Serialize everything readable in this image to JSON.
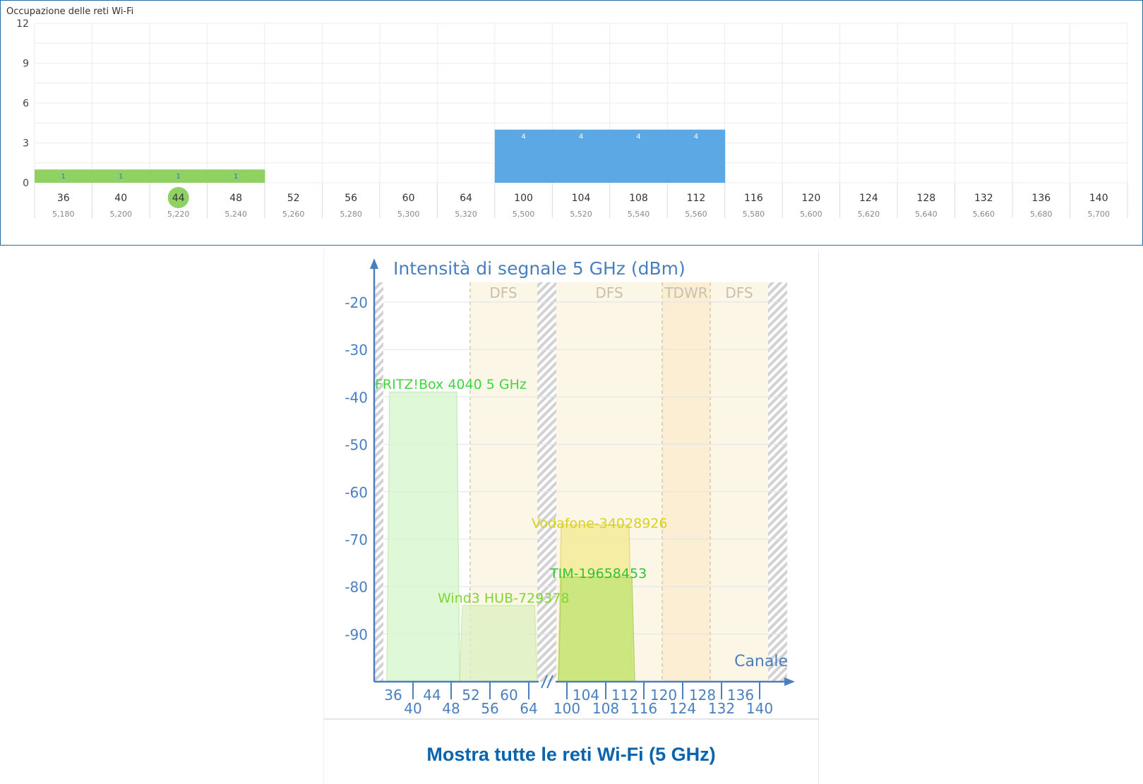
{
  "top_chart": {
    "title": "Occupazione delle reti Wi-Fi",
    "colors": {
      "low": "#8fd163",
      "high": "#5ba8e4",
      "selected": "#8fd163",
      "label": "#2a76c9"
    },
    "selected_channel": "44",
    "chart_data": {
      "type": "bar",
      "title": "Occupazione delle reti Wi-Fi",
      "categories": [
        "36",
        "40",
        "44",
        "48",
        "52",
        "56",
        "60",
        "64",
        "100",
        "104",
        "108",
        "112",
        "116",
        "120",
        "124",
        "128",
        "132",
        "136",
        "140"
      ],
      "frequencies": [
        "5,180",
        "5,200",
        "5,220",
        "5,240",
        "5,260",
        "5,280",
        "5,300",
        "5,320",
        "5,500",
        "5,520",
        "5,540",
        "5,560",
        "5,580",
        "5,600",
        "5,620",
        "5,640",
        "5,660",
        "5,680",
        "5,700"
      ],
      "values": [
        1,
        1,
        1,
        1,
        0,
        0,
        0,
        0,
        4,
        4,
        4,
        4,
        0,
        0,
        0,
        0,
        0,
        0,
        0
      ],
      "yticks": [
        "12",
        "9",
        "6",
        "3",
        "0"
      ],
      "ylim": [
        0,
        12
      ],
      "grid": true
    }
  },
  "signal_chart": {
    "chart_data": {
      "type": "area",
      "title": "Intensità di segnale 5 GHz (dBm)",
      "xlabel": "Canale",
      "ylim": [
        -100,
        -15
      ],
      "yticks": [
        "-20",
        "-30",
        "-40",
        "-50",
        "-60",
        "-70",
        "-80",
        "-90"
      ],
      "x_ticks_top": [
        "36",
        "44",
        "52",
        "60",
        "104",
        "112",
        "120",
        "128",
        "136"
      ],
      "x_ticks_bottom": [
        "40",
        "48",
        "56",
        "64",
        "100",
        "108",
        "116",
        "124",
        "132",
        "140"
      ],
      "bands": [
        {
          "label": "DFS",
          "from": 52,
          "to": 64
        },
        {
          "label": "DFS",
          "from": 100,
          "to": 116
        },
        {
          "label": "TDWR",
          "from": 120,
          "to": 128
        },
        {
          "label": "DFS",
          "from": 132,
          "to": 140
        }
      ],
      "networks": [
        {
          "name": "FRITZ!Box 4040 5 GHz",
          "from": 36,
          "to": 48,
          "dbm": -39,
          "color": "#3fd63f"
        },
        {
          "name": "Wind3 HUB-729378",
          "from": 48,
          "to": 64,
          "dbm": -84,
          "color": "#7fd633"
        },
        {
          "name": "Vodafone-34028926",
          "from": 100,
          "to": 112,
          "dbm": -67,
          "color": "#d8d21a"
        },
        {
          "name": "TIM-19658453",
          "from": 100,
          "to": 112,
          "dbm": -78,
          "color": "#2fc52f"
        }
      ]
    }
  },
  "show_all_link": "Mostra tutte le reti Wi-Fi (5 GHz)"
}
